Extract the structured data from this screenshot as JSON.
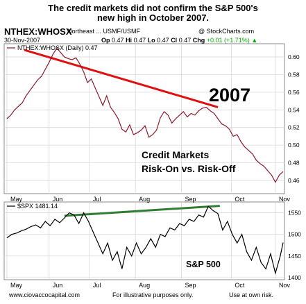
{
  "header": {
    "title_line1": "The credit markets did not confirm the S&P 500's",
    "title_line2": "new high in October 2007.",
    "symbol": "NTHEX:WHOSX",
    "subtitle": "Northeast ... USMF/USMF",
    "copyright": "@ StockCharts.com",
    "date": "30-Nov-2007",
    "op_label": "Op",
    "op": "0.47",
    "hi_label": "Hi",
    "hi": "0.47",
    "lo_label": "Lo",
    "lo": "0.47",
    "cl_label": "Cl",
    "cl": "0.47",
    "chg_label": "Chg",
    "chg": "+0.01 (+1.71%)"
  },
  "annotations": {
    "year": "2007",
    "credit_line1": "Credit Markets",
    "credit_line2": "Risk-On vs. Risk-Off",
    "sp500": "S&P 500"
  },
  "footer": {
    "site": "www.ciovaccocapital.com",
    "disclaimer": "For illustrative purposes only.",
    "risk": "Use at own risk."
  },
  "colors": {
    "price_line": "#8b1a2b",
    "trend_red": "#e01010",
    "trend_green": "#2e7d32",
    "grid": "#d9d9d9"
  },
  "chart_data": [
    {
      "type": "line",
      "legend": "NTHEX:WHOSX (Daily) 0.47",
      "ylim": [
        0.445,
        0.615
      ],
      "yticks": [
        0.46,
        0.48,
        0.5,
        0.52,
        0.54,
        0.56,
        0.58,
        0.6
      ],
      "x_ticks": [
        "May",
        "Jun",
        "Jul",
        "Aug",
        "Sep",
        "Oct",
        "Nov"
      ],
      "x": [
        0,
        4,
        8,
        12,
        16,
        20,
        24,
        28,
        32,
        36,
        40,
        44,
        48,
        52,
        56,
        60,
        64,
        68,
        72,
        76,
        80,
        84,
        88,
        92,
        96,
        100,
        104,
        108,
        112,
        116,
        120,
        124,
        128,
        132,
        136,
        140,
        144,
        148,
        152,
        156,
        160,
        164,
        168,
        172,
        176,
        180,
        184,
        188,
        192,
        196,
        200,
        204,
        208,
        212,
        216,
        220,
        224,
        228,
        232,
        236,
        240,
        244,
        248,
        252,
        256,
        260,
        264,
        268,
        272,
        276,
        280,
        284,
        288
      ],
      "values": [
        0.53,
        0.534,
        0.54,
        0.544,
        0.548,
        0.556,
        0.562,
        0.568,
        0.574,
        0.578,
        0.586,
        0.594,
        0.603,
        0.61,
        0.605,
        0.6,
        0.598,
        0.597,
        0.599,
        0.592,
        0.583,
        0.571,
        0.575,
        0.565,
        0.555,
        0.545,
        0.556,
        0.543,
        0.537,
        0.53,
        0.518,
        0.515,
        0.523,
        0.512,
        0.514,
        0.517,
        0.522,
        0.509,
        0.512,
        0.517,
        0.531,
        0.538,
        0.534,
        0.525,
        0.53,
        0.534,
        0.538,
        0.532,
        0.536,
        0.534,
        0.539,
        0.542,
        0.543,
        0.539,
        0.536,
        0.53,
        0.524,
        0.522,
        0.518,
        0.51,
        0.512,
        0.504,
        0.498,
        0.494,
        0.49,
        0.483,
        0.479,
        0.476,
        0.471,
        0.466,
        0.458,
        0.466,
        0.47
      ],
      "trendline": {
        "from": [
          18,
          0.608
        ],
        "to": [
          220,
          0.543
        ]
      }
    },
    {
      "type": "line",
      "legend": "$SPX 1481.14",
      "ylim": [
        1395,
        1575
      ],
      "yticks": [
        1400,
        1450,
        1500,
        1550
      ],
      "x_ticks": [
        "May",
        "Jun",
        "Jul",
        "Aug",
        "Sep",
        "Oct",
        "Nov"
      ],
      "x": [
        0,
        5,
        10,
        15,
        20,
        25,
        30,
        35,
        40,
        45,
        50,
        55,
        60,
        65,
        70,
        75,
        80,
        85,
        90,
        95,
        100,
        105,
        110,
        115,
        120,
        125,
        130,
        135,
        140,
        145,
        150,
        155,
        160,
        165,
        170,
        175,
        180,
        185,
        190,
        195,
        200,
        205,
        210,
        215,
        220,
        225,
        230,
        235,
        240,
        245,
        250,
        255,
        260,
        265,
        270,
        275,
        280,
        285,
        288
      ],
      "values": [
        1492,
        1500,
        1503,
        1508,
        1512,
        1518,
        1522,
        1515,
        1530,
        1520,
        1535,
        1527,
        1538,
        1550,
        1545,
        1525,
        1550,
        1530,
        1505,
        1480,
        1455,
        1480,
        1440,
        1460,
        1420,
        1470,
        1450,
        1480,
        1455,
        1470,
        1490,
        1470,
        1500,
        1495,
        1515,
        1510,
        1525,
        1520,
        1535,
        1530,
        1545,
        1540,
        1565,
        1555,
        1548,
        1510,
        1530,
        1500,
        1480,
        1500,
        1460,
        1440,
        1470,
        1435,
        1420,
        1455,
        1410,
        1450,
        1481
      ],
      "trendline": {
        "from": [
          60,
          1543
        ],
        "to": [
          222,
          1566
        ]
      }
    }
  ]
}
